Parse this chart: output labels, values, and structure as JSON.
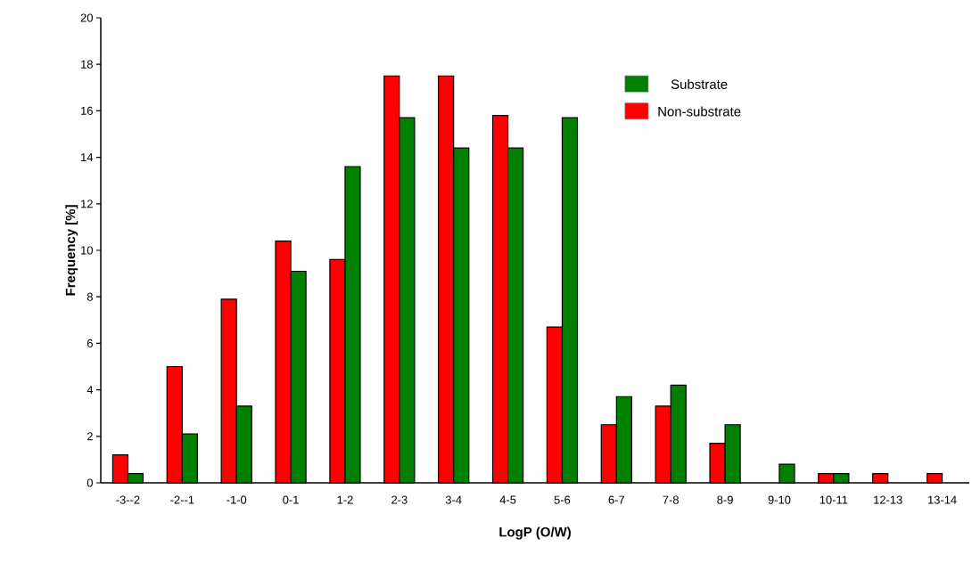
{
  "chart_data": {
    "type": "bar",
    "xlabel": "LogP (O/W)",
    "ylabel": "Frequency [%]",
    "categories": [
      "-3--2",
      "-2--1",
      "-1-0",
      "0-1",
      "1-2",
      "2-3",
      "3-4",
      "4-5",
      "5-6",
      "6-7",
      "7-8",
      "8-9",
      "9-10",
      "10-11",
      "12-13",
      "13-14"
    ],
    "series": [
      {
        "name": "Non-substrate",
        "color": "#ff0000",
        "values": [
          1.2,
          5.0,
          7.9,
          10.4,
          9.6,
          17.5,
          17.5,
          15.8,
          6.7,
          2.5,
          3.3,
          1.7,
          null,
          0.4,
          0.4,
          0.4
        ]
      },
      {
        "name": "Substrate",
        "color": "#008000",
        "values": [
          0.4,
          2.1,
          3.3,
          9.1,
          13.6,
          15.7,
          14.4,
          14.4,
          15.7,
          3.7,
          4.2,
          2.5,
          0.8,
          0.4,
          null,
          null
        ]
      }
    ],
    "ylim": [
      0,
      20
    ],
    "yticks": [
      0,
      2,
      4,
      6,
      8,
      10,
      12,
      14,
      16,
      18,
      20
    ],
    "grid": false,
    "legend": "top right"
  }
}
